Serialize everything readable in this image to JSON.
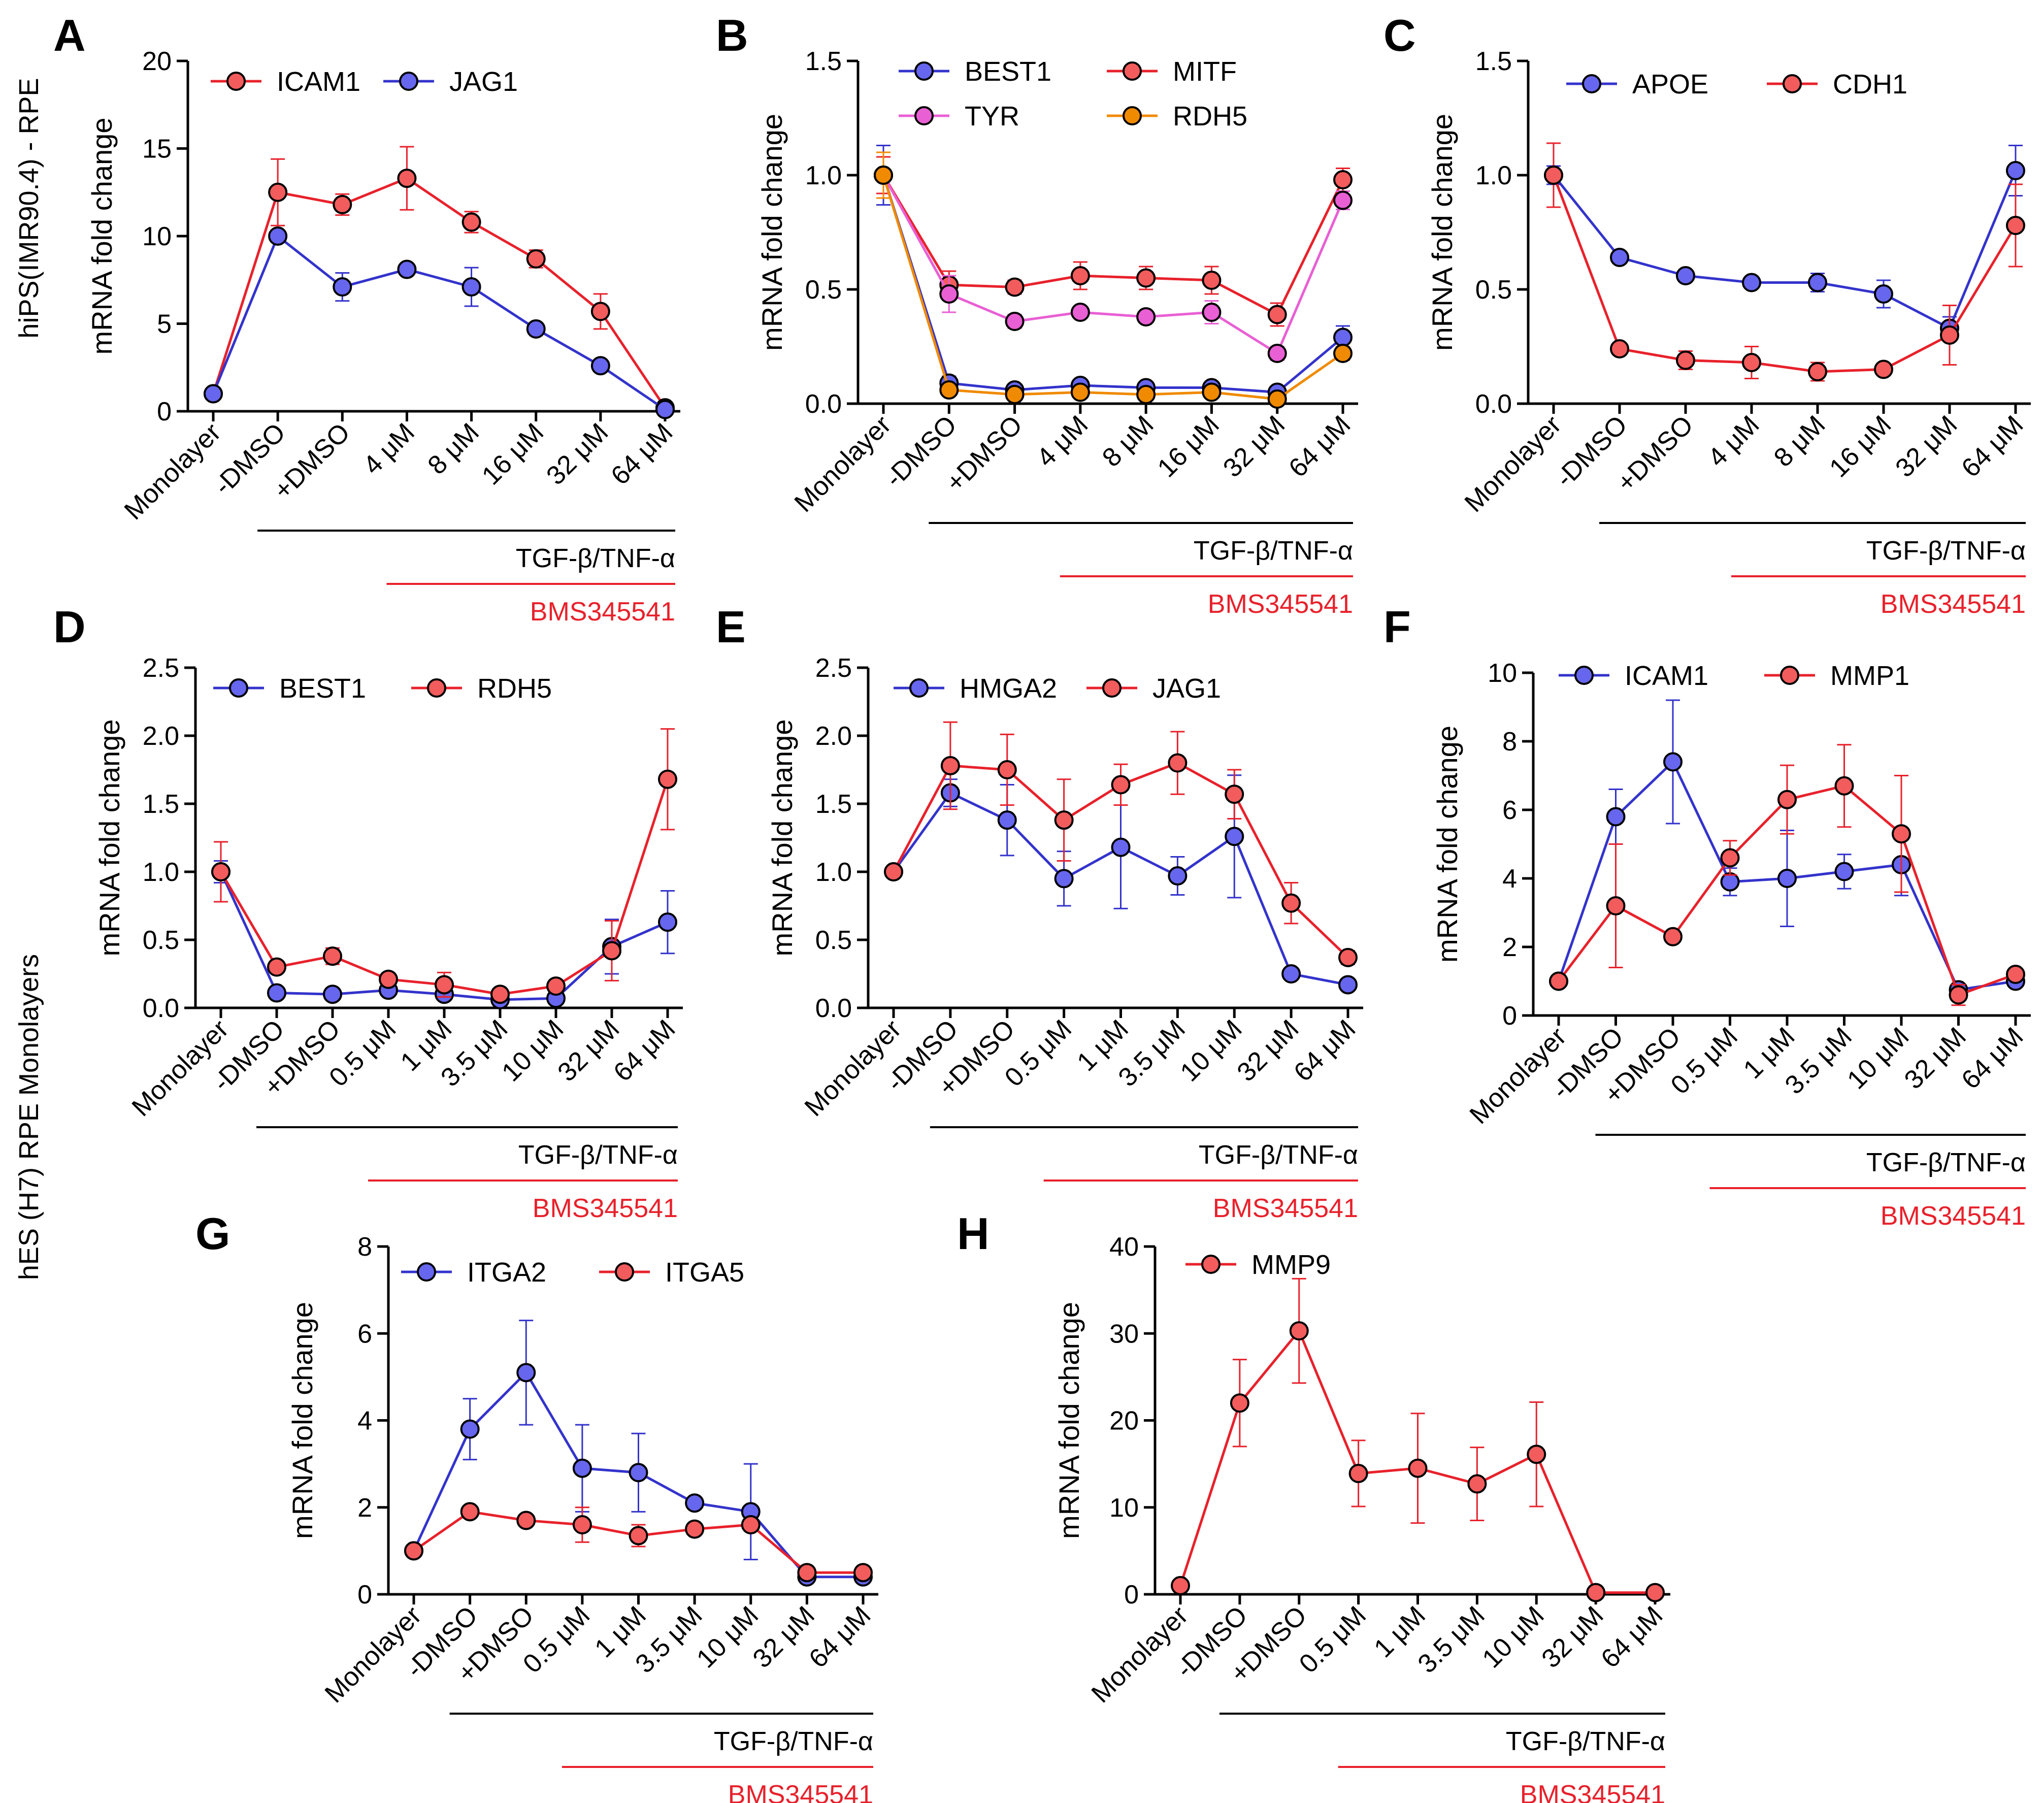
{
  "figure": {
    "row_label_top": "hiPS(IMR90.4) - RPE",
    "row_label_bottom": "hES (H7) RPE Monolayers",
    "colors": {
      "red": "#e8212b",
      "red_fill": "#f25c5c",
      "blue": "#3333cc",
      "blue_fill": "#6666ee",
      "pink": "#e95fd4",
      "orange": "#f08a00",
      "black": "#000000"
    }
  },
  "chart_data": [
    {
      "panel": "A",
      "type": "line",
      "categories": [
        "Monolayer",
        "-DMSO",
        "+DMSO",
        "4 μM",
        "8 μM",
        "16 μM",
        "32 μM",
        "64 μM"
      ],
      "ylabel": "mRNA fold change",
      "ylim": [
        0,
        20
      ],
      "yticks": [
        0,
        5,
        10,
        15,
        20
      ],
      "ytick_labels": [
        "0",
        "5",
        "10",
        "15",
        "20"
      ],
      "treatment_label": "TGF-β/TNF-α",
      "drug_label": "BMS345541",
      "series": [
        {
          "name": "ICAM1",
          "color": "red",
          "values": [
            1.0,
            12.5,
            11.8,
            13.3,
            10.8,
            8.7,
            5.7,
            0.2
          ],
          "errors": [
            0,
            1.9,
            0.6,
            1.8,
            0.6,
            0.5,
            1.0,
            0
          ]
        },
        {
          "name": "JAG1",
          "color": "blue",
          "values": [
            1.0,
            10.0,
            7.1,
            8.1,
            7.1,
            4.7,
            2.6,
            0.1
          ],
          "errors": [
            0,
            0.3,
            0.8,
            0.2,
            1.1,
            0.2,
            0.2,
            0
          ]
        }
      ]
    },
    {
      "panel": "B",
      "type": "line",
      "categories": [
        "Monolayer",
        "-DMSO",
        "+DMSO",
        "4 μM",
        "8 μM",
        "16 μM",
        "32 μM",
        "64 μM"
      ],
      "ylabel": "mRNA fold change",
      "ylim": [
        0,
        1.5
      ],
      "yticks": [
        0,
        0.5,
        1.0,
        1.5
      ],
      "ytick_labels": [
        "0.0",
        "0.5",
        "1.0",
        "1.5"
      ],
      "treatment_label": "TGF-β/TNF-α",
      "drug_label": "BMS345541",
      "series": [
        {
          "name": "BEST1",
          "color": "blue",
          "values": [
            1.0,
            0.09,
            0.06,
            0.08,
            0.07,
            0.07,
            0.05,
            0.29
          ],
          "errors": [
            0.13,
            0.03,
            0.02,
            0.02,
            0.02,
            0.02,
            0.02,
            0.05
          ]
        },
        {
          "name": "MITF",
          "color": "red",
          "values": [
            1.0,
            0.52,
            0.51,
            0.56,
            0.55,
            0.54,
            0.39,
            0.98
          ],
          "errors": [
            0.08,
            0.06,
            0.03,
            0.06,
            0.05,
            0.06,
            0.05,
            0.05
          ]
        },
        {
          "name": "TYR",
          "color": "pink",
          "values": [
            1.0,
            0.48,
            0.36,
            0.4,
            0.38,
            0.4,
            0.22,
            0.89
          ],
          "errors": [
            0.1,
            0.08,
            0.03,
            0.02,
            0.02,
            0.05,
            0.03,
            0.04
          ]
        },
        {
          "name": "RDH5",
          "color": "orange",
          "values": [
            1.0,
            0.06,
            0.04,
            0.05,
            0.04,
            0.05,
            0.02,
            0.22
          ],
          "errors": [
            0.1,
            0.02,
            0.01,
            0.01,
            0.01,
            0.01,
            0.01,
            0.03
          ]
        }
      ]
    },
    {
      "panel": "C",
      "type": "line",
      "categories": [
        "Monolayer",
        "-DMSO",
        "+DMSO",
        "4 μM",
        "8 μM",
        "16 μM",
        "32 μM",
        "64 μM"
      ],
      "ylabel": "mRNA fold change",
      "ylim": [
        0,
        1.5
      ],
      "yticks": [
        0,
        0.5,
        1.0,
        1.5
      ],
      "ytick_labels": [
        "0.0",
        "0.5",
        "1.0",
        "1.5"
      ],
      "treatment_label": "TGF-β/TNF-α",
      "drug_label": "BMS345541",
      "series": [
        {
          "name": "APOE",
          "color": "blue",
          "values": [
            1.0,
            0.64,
            0.56,
            0.53,
            0.53,
            0.48,
            0.33,
            1.02
          ],
          "errors": [
            0.04,
            0.02,
            0.02,
            0.02,
            0.04,
            0.06,
            0.05,
            0.11
          ]
        },
        {
          "name": "CDH1",
          "color": "red",
          "values": [
            1.0,
            0.24,
            0.19,
            0.18,
            0.14,
            0.15,
            0.3,
            0.78
          ],
          "errors": [
            0.14,
            0.02,
            0.04,
            0.07,
            0.04,
            0.02,
            0.13,
            0.18
          ]
        }
      ]
    },
    {
      "panel": "D",
      "type": "line",
      "categories": [
        "Monolayer",
        "-DMSO",
        "+DMSO",
        "0.5 μM",
        "1 μM",
        "3.5 μM",
        "10 μM",
        "32 μM",
        "64 μM"
      ],
      "ylabel": "mRNA fold change",
      "ylim": [
        0,
        2.5
      ],
      "yticks": [
        0,
        0.5,
        1.0,
        1.5,
        2.0,
        2.5
      ],
      "ytick_labels": [
        "0.0",
        "0.5",
        "1.0",
        "1.5",
        "2.0",
        "2.5"
      ],
      "treatment_label": "TGF-β/TNF-α",
      "drug_label": "BMS345541",
      "series": [
        {
          "name": "BEST1",
          "color": "blue",
          "values": [
            1.0,
            0.11,
            0.1,
            0.13,
            0.1,
            0.06,
            0.07,
            0.45,
            0.63
          ],
          "errors": [
            0.08,
            0.02,
            0.02,
            0.03,
            0.03,
            0.02,
            0.02,
            0.2,
            0.23
          ]
        },
        {
          "name": "RDH5",
          "color": "red",
          "values": [
            1.0,
            0.3,
            0.38,
            0.21,
            0.17,
            0.1,
            0.16,
            0.42,
            1.68
          ],
          "errors": [
            0.22,
            0.04,
            0.06,
            0.03,
            0.09,
            0.04,
            0.04,
            0.22,
            0.37
          ]
        }
      ]
    },
    {
      "panel": "E",
      "type": "line",
      "categories": [
        "Monolayer",
        "-DMSO",
        "+DMSO",
        "0.5 μM",
        "1 μM",
        "3.5 μM",
        "10 μM",
        "32 μM",
        "64 μM"
      ],
      "ylabel": "mRNA fold change",
      "ylim": [
        0,
        2.5
      ],
      "yticks": [
        0,
        0.5,
        1.0,
        1.5,
        2.0,
        2.5
      ],
      "ytick_labels": [
        "0.0",
        "0.5",
        "1.0",
        "1.5",
        "2.0",
        "2.5"
      ],
      "treatment_label": "TGF-β/TNF-α",
      "drug_label": "BMS345541",
      "series": [
        {
          "name": "HMGA2",
          "color": "blue",
          "values": [
            1.0,
            1.58,
            1.38,
            0.95,
            1.18,
            0.97,
            1.26,
            0.25,
            0.17
          ],
          "errors": [
            0,
            0.1,
            0.26,
            0.2,
            0.45,
            0.14,
            0.45,
            0.02,
            0.02
          ]
        },
        {
          "name": "JAG1",
          "color": "red",
          "values": [
            1.0,
            1.78,
            1.75,
            1.38,
            1.64,
            1.8,
            1.57,
            0.77,
            0.37
          ],
          "errors": [
            0,
            0.32,
            0.26,
            0.3,
            0.15,
            0.23,
            0.18,
            0.15,
            0.05
          ]
        }
      ]
    },
    {
      "panel": "F",
      "type": "line",
      "categories": [
        "Monolayer",
        "-DMSO",
        "+DMSO",
        "0.5 μM",
        "1 μM",
        "3.5 μM",
        "10 μM",
        "32 μM",
        "64 μM"
      ],
      "ylabel": "mRNA fold change",
      "ylim": [
        0,
        10
      ],
      "yticks": [
        0,
        2,
        4,
        6,
        8,
        10
      ],
      "ytick_labels": [
        "0",
        "2",
        "4",
        "6",
        "8",
        "10"
      ],
      "treatment_label": "TGF-β/TNF-α",
      "drug_label": "BMS345541",
      "series": [
        {
          "name": "ICAM1",
          "color": "blue",
          "values": [
            1.0,
            5.8,
            7.4,
            3.9,
            4.0,
            4.2,
            4.4,
            0.75,
            1.0
          ],
          "errors": [
            0,
            0.8,
            1.8,
            0.4,
            1.4,
            0.5,
            0.9,
            0.1,
            0.1
          ]
        },
        {
          "name": "MMP1",
          "color": "red",
          "values": [
            1.0,
            3.2,
            2.3,
            4.6,
            6.3,
            6.7,
            5.3,
            0.6,
            1.2
          ],
          "errors": [
            0,
            1.8,
            0.1,
            0.5,
            1.0,
            1.2,
            1.7,
            0.3,
            0.1
          ]
        }
      ]
    },
    {
      "panel": "G",
      "type": "line",
      "categories": [
        "Monolayer",
        "-DMSO",
        "+DMSO",
        "0.5 μM",
        "1 μM",
        "3.5 μM",
        "10 μM",
        "32 μM",
        "64 μM"
      ],
      "ylabel": "mRNA fold change",
      "ylim": [
        0,
        8
      ],
      "yticks": [
        0,
        2,
        4,
        6,
        8
      ],
      "ytick_labels": [
        "0",
        "2",
        "4",
        "6",
        "8"
      ],
      "treatment_label": "TGF-β/TNF-α",
      "drug_label": "BMS345541",
      "series": [
        {
          "name": "ITGA2",
          "color": "blue",
          "values": [
            1.0,
            3.8,
            5.1,
            2.9,
            2.8,
            2.1,
            1.9,
            0.4,
            0.4
          ],
          "errors": [
            0,
            0.7,
            1.2,
            1.0,
            0.9,
            0.1,
            1.1,
            0.05,
            0.05
          ]
        },
        {
          "name": "ITGA5",
          "color": "red",
          "values": [
            1.0,
            1.9,
            1.7,
            1.6,
            1.35,
            1.5,
            1.6,
            0.5,
            0.5
          ],
          "errors": [
            0,
            0.05,
            0.05,
            0.4,
            0.25,
            0.05,
            0.1,
            0.05,
            0.05
          ]
        }
      ]
    },
    {
      "panel": "H",
      "type": "line",
      "categories": [
        "Monolayer",
        "-DMSO",
        "+DMSO",
        "0.5 μM",
        "1 μM",
        "3.5 μM",
        "10 μM",
        "32 μM",
        "64 μM"
      ],
      "ylabel": "mRNA fold change",
      "ylim": [
        0,
        40
      ],
      "yticks": [
        0,
        10,
        20,
        30,
        40
      ],
      "ytick_labels": [
        "0",
        "10",
        "20",
        "30",
        "40"
      ],
      "treatment_label": "TGF-β/TNF-α",
      "drug_label": "BMS345541",
      "series": [
        {
          "name": "MMP9",
          "color": "red",
          "values": [
            1.0,
            22.0,
            30.3,
            13.9,
            14.5,
            12.7,
            16.1,
            0.2,
            0.2
          ],
          "errors": [
            0,
            5.0,
            6.0,
            3.8,
            6.3,
            4.2,
            6.0,
            0.1,
            0.1
          ]
        }
      ]
    }
  ]
}
